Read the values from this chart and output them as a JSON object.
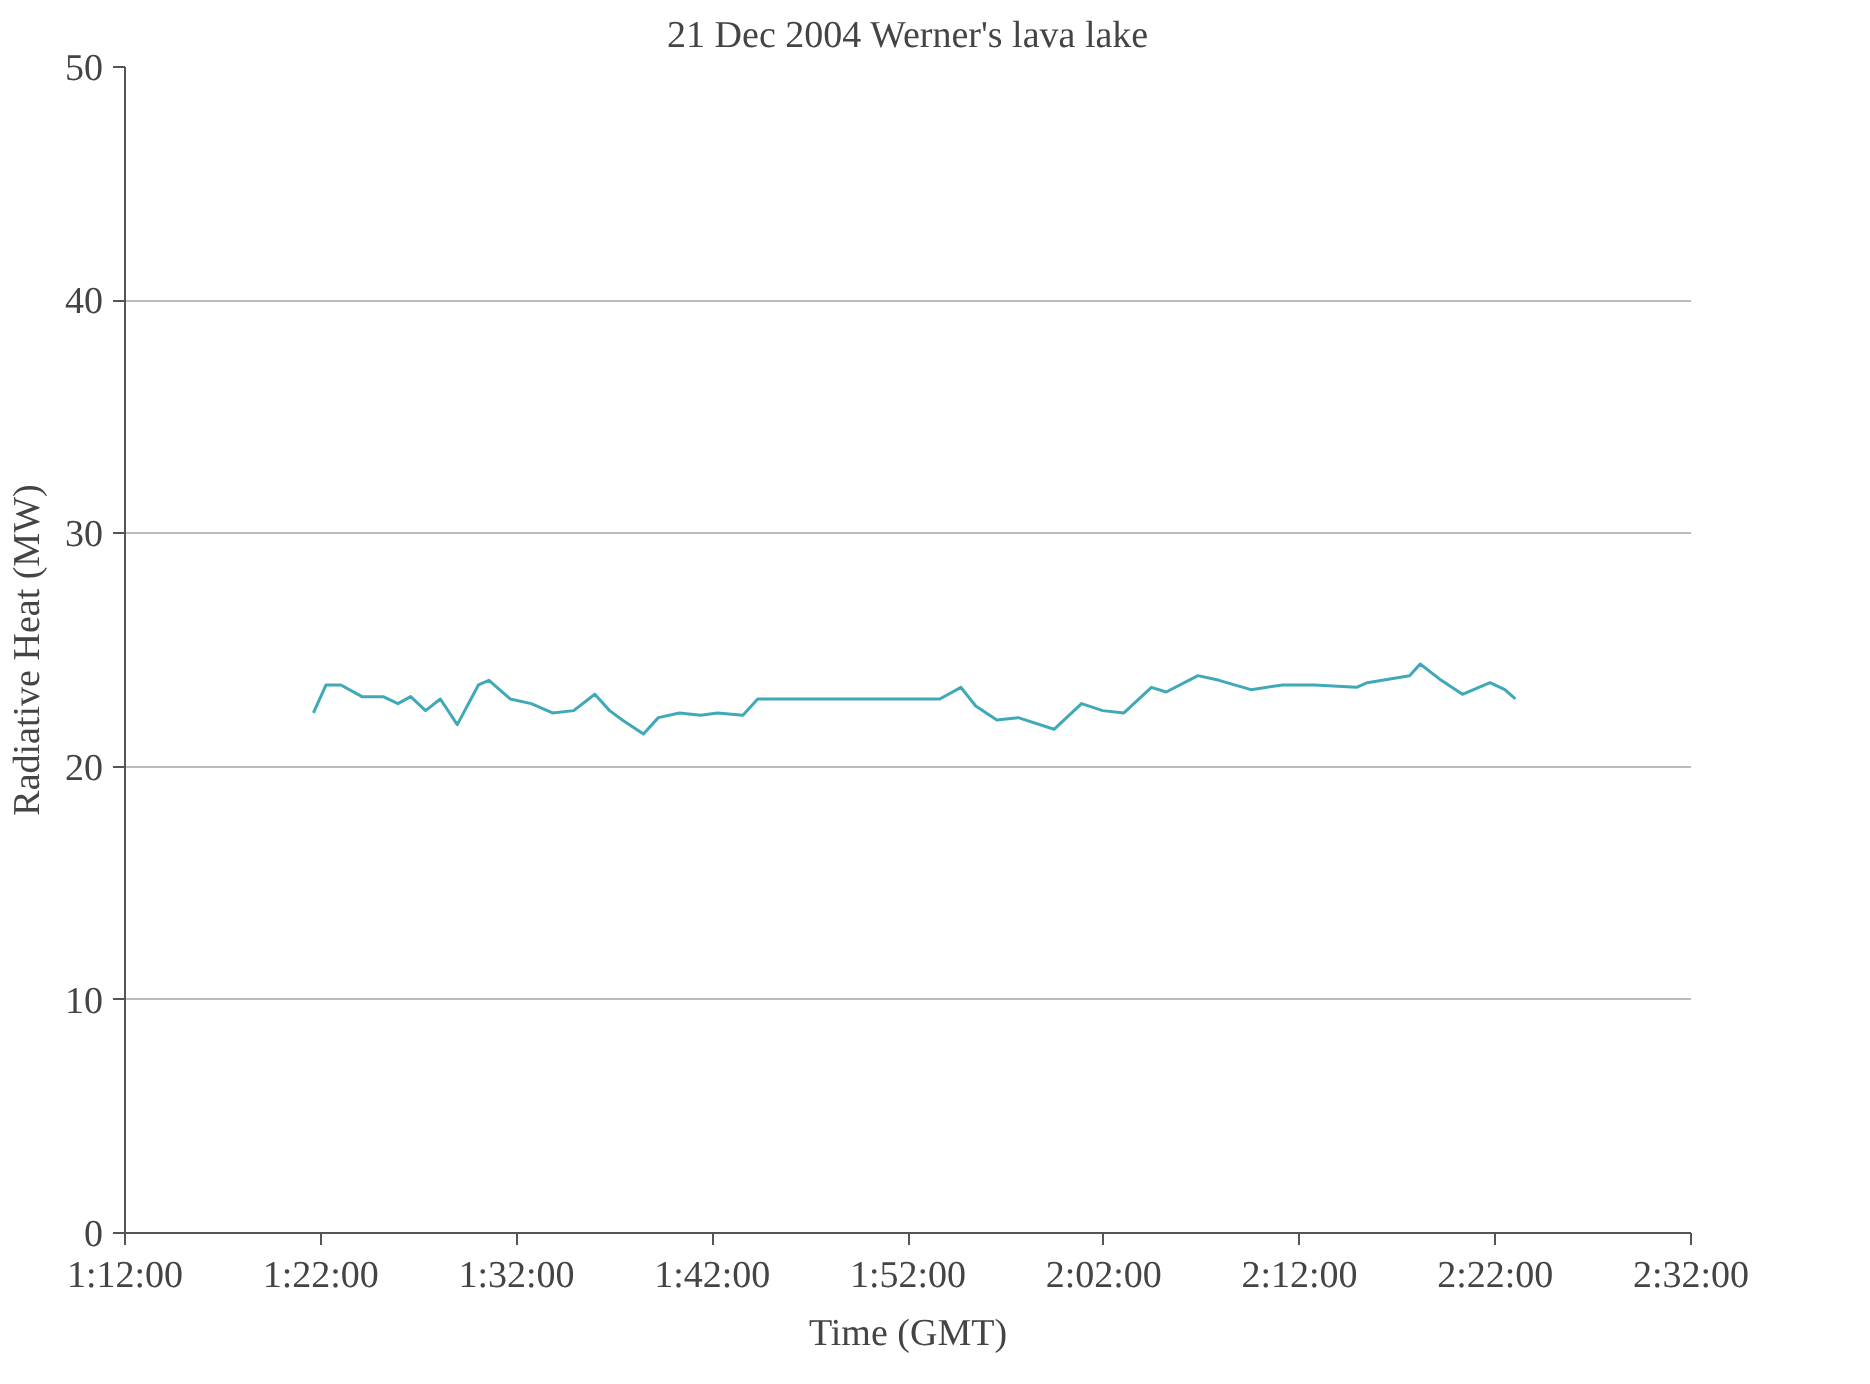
{
  "chart_data": {
    "type": "line",
    "title": "21 Dec 2004 Werner's lava lake",
    "xlabel": "Time (GMT)",
    "ylabel": "Radiative Heat (MW)",
    "x": [
      1.3604,
      1.3712,
      1.3838,
      1.4018,
      1.4198,
      1.4324,
      1.4432,
      1.4559,
      1.4685,
      1.4829,
      1.5009,
      1.5099,
      1.5279,
      1.5459,
      1.564,
      1.582,
      1.6,
      1.6126,
      1.6234,
      1.6414,
      1.6541,
      1.6721,
      1.6901,
      1.7045,
      1.7261,
      1.7387,
      1.8937,
      1.9117,
      1.9243,
      1.9423,
      1.9604,
      1.991,
      2.0144,
      2.0324,
      2.0505,
      2.0739,
      2.0865,
      2.1135,
      2.1315,
      2.1586,
      2.1856,
      2.2126,
      2.2486,
      2.2577,
      2.2937,
      2.3027,
      2.3207,
      2.3387,
      2.3622,
      2.3748,
      2.3838
    ],
    "series": [
      {
        "color": "#3fa9b8",
        "values": [
          22.3,
          23.5,
          23.5,
          23.0,
          23.0,
          22.7,
          23.0,
          22.4,
          22.9,
          21.8,
          23.5,
          23.7,
          22.9,
          22.7,
          22.3,
          22.4,
          23.1,
          22.4,
          22.0,
          21.4,
          22.1,
          22.3,
          22.2,
          22.3,
          22.2,
          22.9,
          22.9,
          23.4,
          22.6,
          22.0,
          22.1,
          21.6,
          22.7,
          22.4,
          22.3,
          23.4,
          23.2,
          23.9,
          23.7,
          23.3,
          23.5,
          23.5,
          23.4,
          23.6,
          23.9,
          24.4,
          23.7,
          23.1,
          23.6,
          23.3,
          22.9
        ]
      }
    ],
    "xlim": [
      1.2,
      2.5333
    ],
    "xticks": [
      {
        "value": 1.2,
        "label": "1:12:00"
      },
      {
        "value": 1.3667,
        "label": "1:22:00"
      },
      {
        "value": 1.5333,
        "label": "1:32:00"
      },
      {
        "value": 1.7,
        "label": "1:42:00"
      },
      {
        "value": 1.8667,
        "label": "1:52:00"
      },
      {
        "value": 2.0333,
        "label": "2:02:00"
      },
      {
        "value": 2.2,
        "label": "2:12:00"
      },
      {
        "value": 2.3667,
        "label": "2:22:00"
      },
      {
        "value": 2.5333,
        "label": "2:32:00"
      }
    ],
    "ylim": [
      0,
      50
    ],
    "yticks": [
      0,
      10,
      20,
      30,
      40,
      50
    ],
    "grid": "y",
    "marker": "none",
    "line_style": "solid"
  }
}
